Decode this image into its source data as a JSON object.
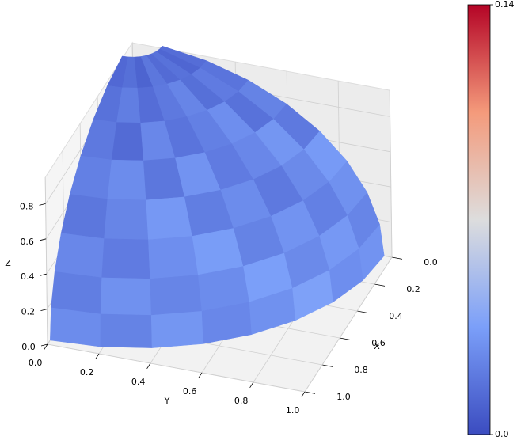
{
  "chart_data": {
    "type": "surface3d",
    "xlabel": "X",
    "ylabel": "Y",
    "zlabel": "Z",
    "xlim": [
      0,
      1
    ],
    "ylim": [
      0,
      1
    ],
    "zlim": [
      0,
      0.95
    ],
    "xticks": [
      {
        "value": 0,
        "label": "0.0"
      },
      0.2,
      0.4,
      0.6,
      0.8,
      {
        "value": 1,
        "label": "1.0"
      }
    ],
    "yticks": [
      {
        "value": 0,
        "label": "0.0"
      },
      0.2,
      0.4,
      0.6,
      0.8,
      {
        "value": 1,
        "label": "1.0"
      }
    ],
    "zticks": [
      {
        "value": 0,
        "label": "0.0"
      },
      0.2,
      0.4,
      0.6,
      0.8
    ],
    "colormap": "coolwarm",
    "clim": [
      0,
      0.14
    ],
    "cticks": [
      {
        "value": 0,
        "label": "0.0"
      },
      0.14
    ],
    "values": [
      [
        0.012,
        0.015,
        0.01,
        0.018,
        0.013,
        0.016,
        0.011,
        0.014
      ],
      [
        0.016,
        0.021,
        0.014,
        0.019,
        0.024,
        0.015,
        0.02,
        0.017
      ],
      [
        0.019,
        0.013,
        0.025,
        0.017,
        0.022,
        0.028,
        0.016,
        0.023
      ],
      [
        0.022,
        0.027,
        0.018,
        0.03,
        0.02,
        0.025,
        0.031,
        0.019
      ],
      [
        0.018,
        0.024,
        0.032,
        0.021,
        0.027,
        0.019,
        0.026,
        0.033
      ],
      [
        0.025,
        0.02,
        0.028,
        0.034,
        0.023,
        0.03,
        0.022,
        0.029
      ],
      [
        0.021,
        0.029,
        0.024,
        0.027,
        0.035,
        0.026,
        0.032,
        0.024
      ],
      [
        0.027,
        0.023,
        0.031,
        0.025,
        0.029,
        0.036,
        0.028,
        0.03
      ]
    ]
  }
}
